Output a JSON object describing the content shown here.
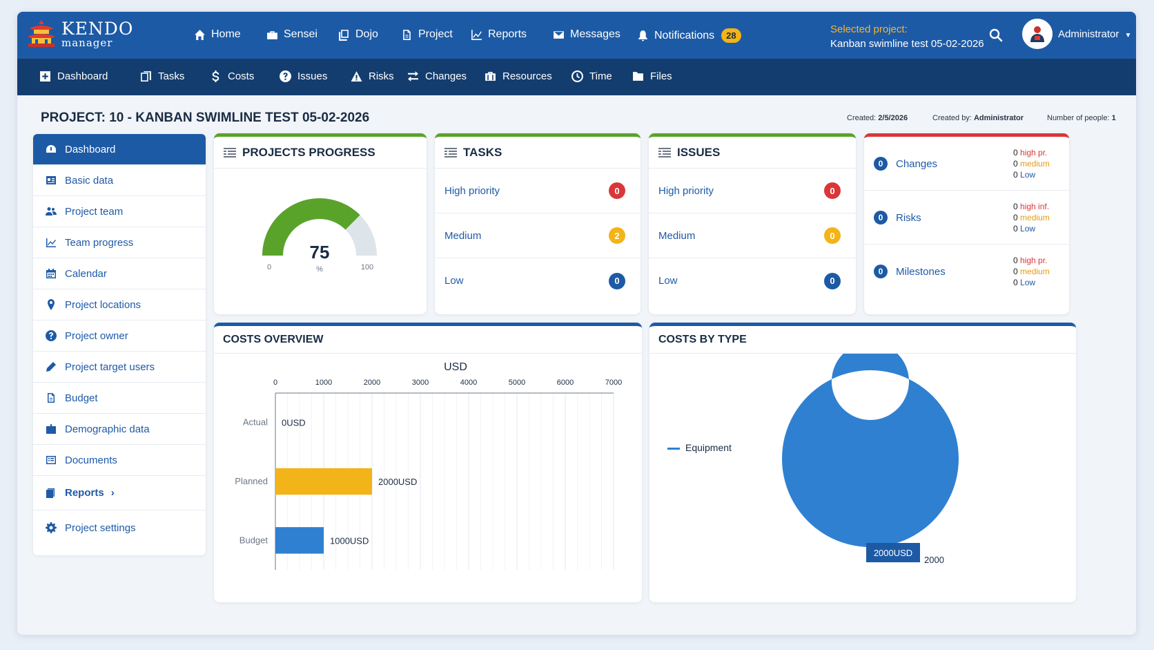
{
  "app": {
    "logo_line1": "KENDO",
    "logo_line2": "manager"
  },
  "topnav": {
    "home": "Home",
    "sensei": "Sensei",
    "dojo": "Dojo",
    "project": "Project",
    "reports": "Reports",
    "messages": "Messages",
    "notifications": "Notifications",
    "notifications_count": "28",
    "selected_label": "Selected project:",
    "selected_value": "Kanban swimline test 05-02-2026",
    "user": "Administrator"
  },
  "subnav": {
    "dashboard": "Dashboard",
    "tasks": "Tasks",
    "costs": "Costs",
    "issues": "Issues",
    "risks": "Risks",
    "changes": "Changes",
    "resources": "Resources",
    "time": "Time",
    "files": "Files"
  },
  "header": {
    "title": "PROJECT: 10 - KANBAN SWIMLINE TEST 05-02-2026",
    "created_label": "Created:",
    "created_value": "2/5/2026",
    "created_by_label": "Created by:",
    "created_by_value": "Administrator",
    "people_label": "Number of people:",
    "people_value": "1"
  },
  "sidebar": {
    "items": [
      {
        "label": "Dashboard"
      },
      {
        "label": "Basic data"
      },
      {
        "label": "Project team"
      },
      {
        "label": "Team progress"
      },
      {
        "label": "Calendar"
      },
      {
        "label": "Project locations"
      },
      {
        "label": "Project owner"
      },
      {
        "label": "Project target users"
      },
      {
        "label": "Budget"
      },
      {
        "label": "Demographic data"
      },
      {
        "label": "Documents"
      },
      {
        "label": "Reports"
      },
      {
        "label": "Project settings"
      }
    ]
  },
  "progress": {
    "title": "PROJECTS PROGRESS",
    "value": "75",
    "value_num": 75,
    "unit": "%",
    "min": "0",
    "max": "100"
  },
  "tasks": {
    "title": "TASKS",
    "rows": [
      {
        "label": "High priority",
        "count": "0"
      },
      {
        "label": "Medium",
        "count": "2"
      },
      {
        "label": "Low",
        "count": "0"
      }
    ]
  },
  "issues": {
    "title": "ISSUES",
    "rows": [
      {
        "label": "High priority",
        "count": "0"
      },
      {
        "label": "Medium",
        "count": "0"
      },
      {
        "label": "Low",
        "count": "0"
      }
    ]
  },
  "crm": {
    "items": [
      {
        "name": "Changes",
        "count": "0",
        "high_n": "0",
        "high": "high pr.",
        "med_n": "0",
        "med": "medium",
        "low_n": "0",
        "low": "Low"
      },
      {
        "name": "Risks",
        "count": "0",
        "high_n": "0",
        "high": "high inf.",
        "med_n": "0",
        "med": "medium",
        "low_n": "0",
        "low": "Low"
      },
      {
        "name": "Milestones",
        "count": "0",
        "high_n": "0",
        "high": "high pr.",
        "med_n": "0",
        "med": "medium",
        "low_n": "0",
        "low": "Low"
      }
    ]
  },
  "costs_overview": {
    "title": "COSTS OVERVIEW"
  },
  "costs_by_type": {
    "title": "COSTS BY TYPE"
  },
  "chart_data": [
    {
      "type": "bar",
      "orientation": "horizontal",
      "xlabel": "USD",
      "xlim": [
        0,
        7000
      ],
      "xticks": [
        "0",
        "1000",
        "2000",
        "3000",
        "4000",
        "5000",
        "6000",
        "7000"
      ],
      "categories": [
        "Actual",
        "Planned",
        "Budget"
      ],
      "values": [
        0,
        2000,
        1000
      ],
      "data_labels": [
        "0USD",
        "2000USD",
        "1000USD"
      ],
      "colors": [
        "#f2b418",
        "#f2b418",
        "#2f80d1"
      ],
      "grid": true
    },
    {
      "type": "pie",
      "variant": "donut",
      "legend": [
        "Equipment"
      ],
      "legend_placement": "left",
      "values": [
        2000
      ],
      "data_labels": [
        "2000USD",
        "2000"
      ],
      "colors": [
        "#2f80d1"
      ]
    }
  ]
}
